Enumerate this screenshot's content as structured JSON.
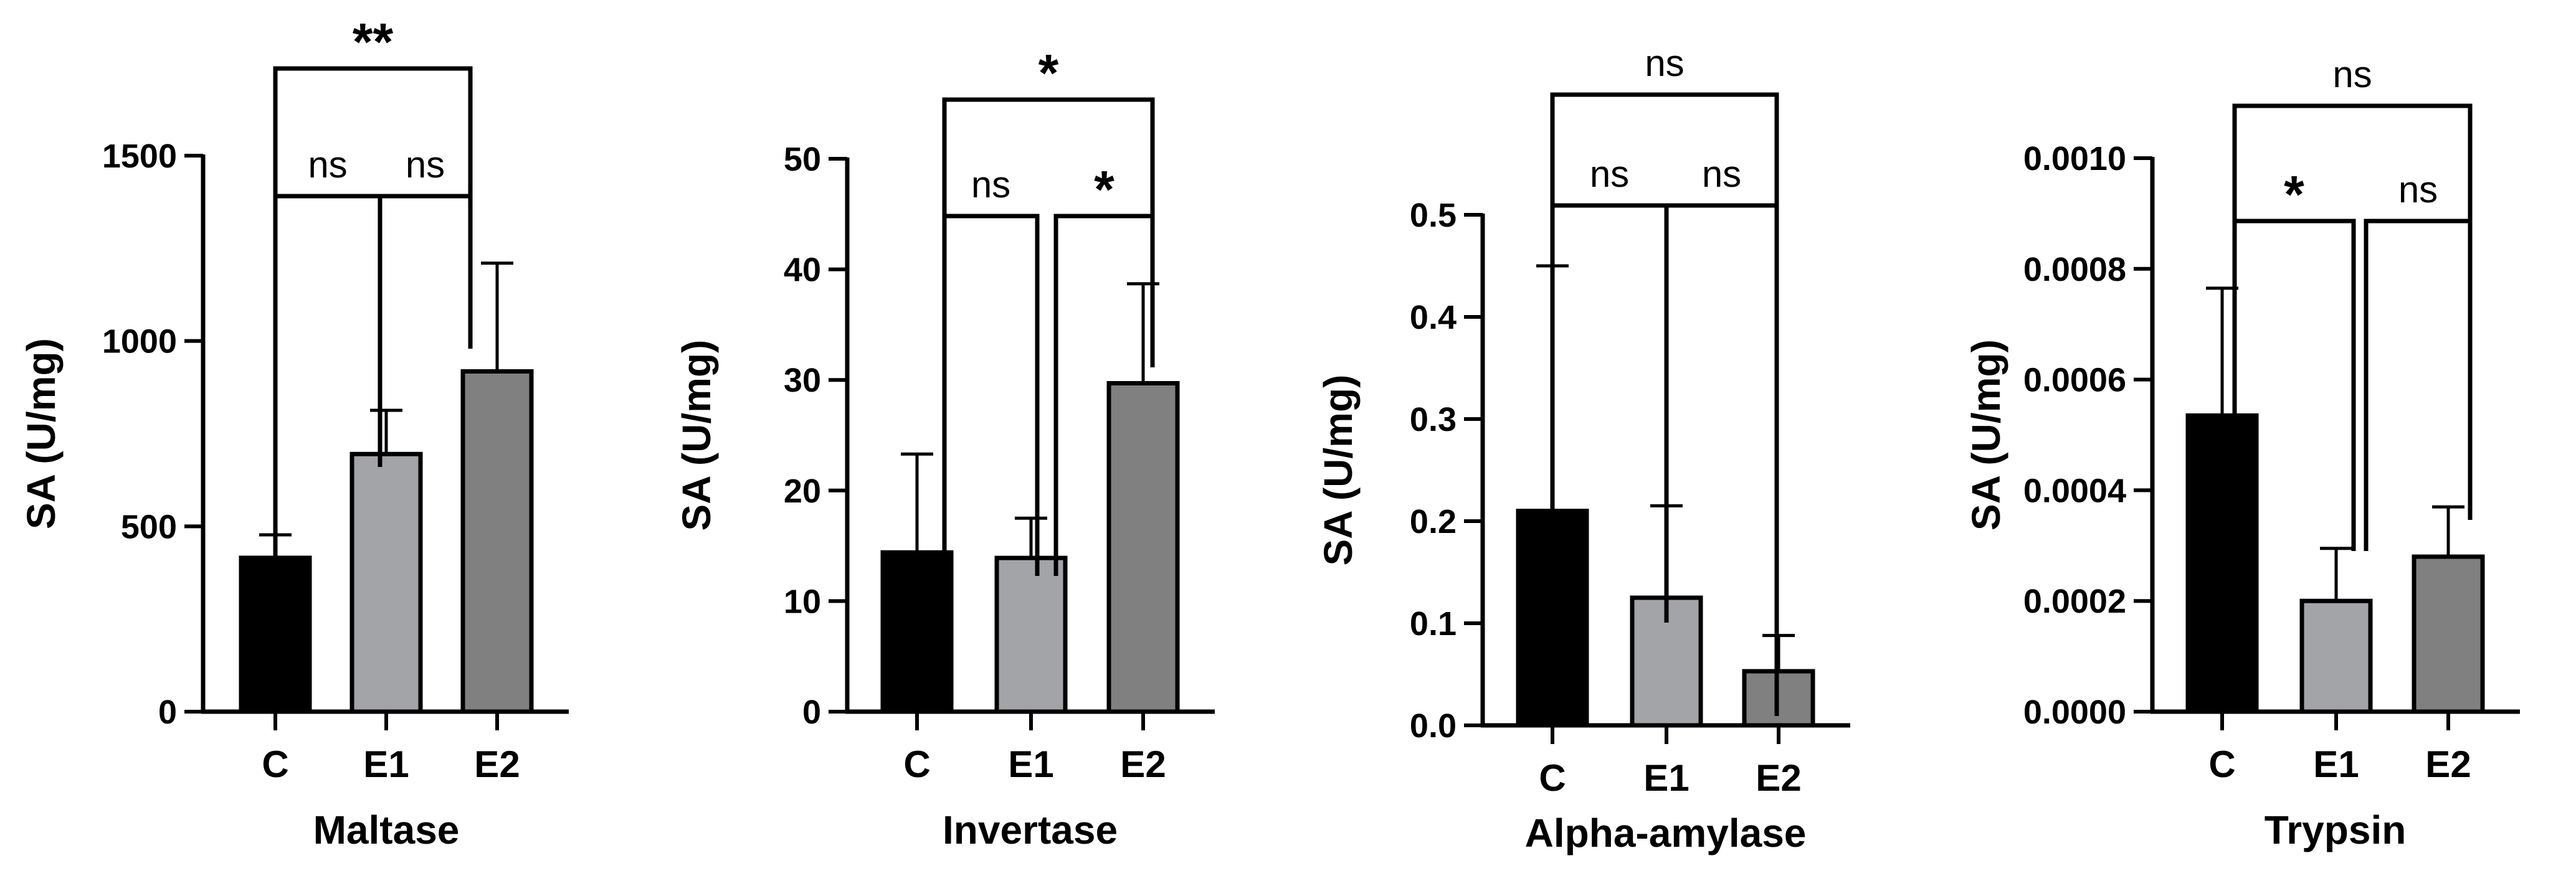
{
  "chart_data": [
    {
      "type": "bar",
      "title": "",
      "xlabel": "Maltase",
      "ylabel": "SA (U/mg)",
      "categories": [
        "C",
        "E1",
        "E2"
      ],
      "values": [
        415,
        695,
        918
      ],
      "errors": [
        62,
        118,
        292
      ],
      "bar_colors": [
        "#000000",
        "#a3a4a8",
        "#808080"
      ],
      "ylim": [
        0,
        1500
      ],
      "yticks": [
        0,
        500,
        1000,
        1500
      ],
      "ytick_labels": [
        "0",
        "500",
        "1000",
        "1500"
      ],
      "grid": false,
      "comparisons": [
        {
          "from": "C",
          "to": "E1",
          "label": "ns"
        },
        {
          "from": "E1",
          "to": "E2",
          "label": "ns"
        },
        {
          "from": "C",
          "to": "E2",
          "label": "**"
        }
      ]
    },
    {
      "type": "bar",
      "title": "",
      "xlabel": "Invertase",
      "ylabel": "SA (U/mg)",
      "categories": [
        "C",
        "E1",
        "E2"
      ],
      "values": [
        14.4,
        13.9,
        29.7
      ],
      "errors": [
        8.9,
        3.6,
        9.0
      ],
      "bar_colors": [
        "#000000",
        "#a3a4a8",
        "#808080"
      ],
      "ylim": [
        0,
        50
      ],
      "yticks": [
        0,
        10,
        20,
        30,
        40,
        50
      ],
      "ytick_labels": [
        "0",
        "10",
        "20",
        "30",
        "40",
        "50"
      ],
      "grid": false,
      "comparisons": [
        {
          "from": "C",
          "to": "E1",
          "label": "ns"
        },
        {
          "from": "E1",
          "to": "E2",
          "label": "*"
        },
        {
          "from": "C",
          "to": "E2",
          "label": "*"
        }
      ]
    },
    {
      "type": "bar",
      "title": "",
      "xlabel": "Alpha-amylase",
      "ylabel": "SA (U/mg)",
      "categories": [
        "C",
        "E1",
        "E2"
      ],
      "values": [
        0.21,
        0.125,
        0.053
      ],
      "errors": [
        0.24,
        0.09,
        0.035
      ],
      "bar_colors": [
        "#000000",
        "#a3a4a8",
        "#808080"
      ],
      "ylim": [
        0,
        0.5
      ],
      "yticks": [
        0,
        0.1,
        0.2,
        0.3,
        0.4,
        0.5
      ],
      "ytick_labels": [
        "0.0",
        "0.1",
        "0.2",
        "0.3",
        "0.4",
        "0.5"
      ],
      "grid": false,
      "comparisons": [
        {
          "from": "C",
          "to": "E1",
          "label": "ns"
        },
        {
          "from": "E1",
          "to": "E2",
          "label": "ns"
        },
        {
          "from": "C",
          "to": "E2",
          "label": "ns"
        }
      ]
    },
    {
      "type": "bar",
      "title": "",
      "xlabel": "Trypsin",
      "ylabel": "SA (U/mg)",
      "categories": [
        "C",
        "E1",
        "E2"
      ],
      "values": [
        0.000535,
        0.0002,
        0.00028
      ],
      "errors": [
        0.00023,
        9.5e-05,
        9e-05
      ],
      "bar_colors": [
        "#000000",
        "#a3a4a8",
        "#808080"
      ],
      "ylim": [
        0,
        0.001
      ],
      "yticks": [
        0,
        0.0002,
        0.0004,
        0.0006,
        0.0008,
        0.001
      ],
      "ytick_labels": [
        "0.0000",
        "0.0002",
        "0.0004",
        "0.0006",
        "0.0008",
        "0.0010"
      ],
      "grid": false,
      "comparisons": [
        {
          "from": "C",
          "to": "E1",
          "label": "*"
        },
        {
          "from": "E1",
          "to": "E2",
          "label": "ns"
        },
        {
          "from": "C",
          "to": "E2",
          "label": "ns"
        }
      ]
    }
  ]
}
